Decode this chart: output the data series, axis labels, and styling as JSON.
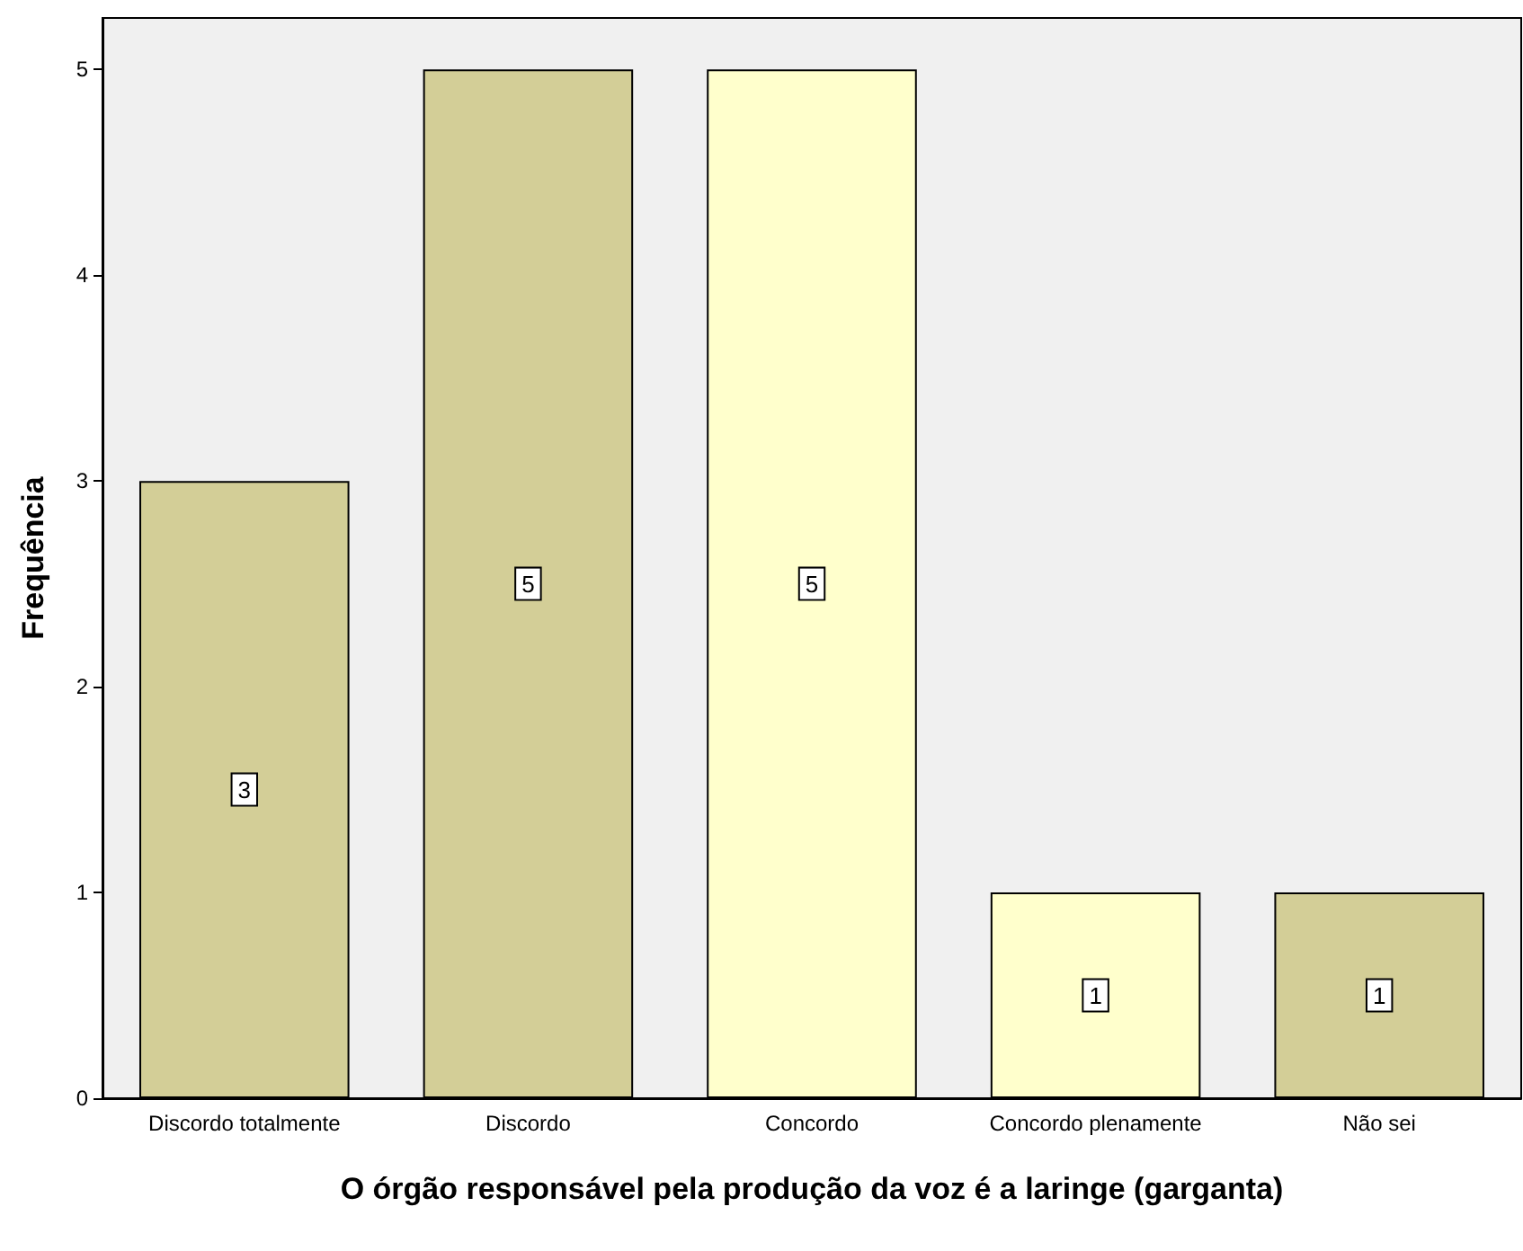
{
  "chart_data": {
    "type": "bar",
    "xlabel": "O órgão responsável pela produção da voz é a laringe (garganta)",
    "ylabel": "Frequência",
    "categories": [
      "Discordo totalmente",
      "Discordo",
      "Concordo",
      "Concordo plenamente",
      "Não sei"
    ],
    "values": [
      3,
      5,
      5,
      1,
      1
    ],
    "colors": [
      "#d3ce97",
      "#d3ce97",
      "#ffffcc",
      "#ffffcc",
      "#d3ce97"
    ],
    "ylim": [
      0,
      5.25
    ],
    "yticks": [
      0,
      1,
      2,
      3,
      4,
      5
    ],
    "grid": false,
    "data_labels": true
  }
}
